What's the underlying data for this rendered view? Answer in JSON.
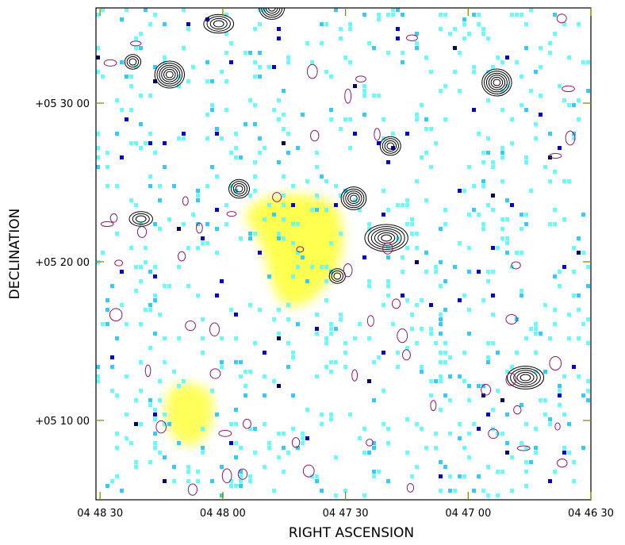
{
  "chart_data": {
    "type": "heatmap",
    "xlabel": "RIGHT ASCENSION",
    "ylabel": "DECLINATION",
    "x_ticks": [
      "04 48 30",
      "04 48 00",
      "04 47 30",
      "04 47 00",
      "04 46 30"
    ],
    "y_ticks": [
      "+05 30 00",
      "+05 20 00",
      "+05 10 00"
    ],
    "x_tick_seconds": [
      17310,
      17280,
      17250,
      17220,
      17190
    ],
    "y_tick_arcmin": [
      330,
      320,
      310
    ],
    "xlim_seconds": [
      17311,
      17190
    ],
    "ylim_arcmin": [
      305,
      336
    ],
    "layers": {
      "radio_diffuse_color": "#ffff33",
      "pixel_colors": [
        "#66ffff",
        "#33ccff",
        "#0000cc",
        "#000066"
      ],
      "contour_colors": {
        "positive": "#000000",
        "negative": "#8b1a6b"
      }
    },
    "diffuse_regions": [
      {
        "name": "halo",
        "ra_seconds": 17261,
        "dec_arcmin": 321.0
      },
      {
        "name": "relic",
        "ra_seconds": 17288,
        "dec_arcmin": 310.5
      }
    ],
    "sources": [
      {
        "ra_seconds": 17302,
        "dec_arcmin": 332.6
      },
      {
        "ra_seconds": 17281,
        "dec_arcmin": 335.0
      },
      {
        "ra_seconds": 17268,
        "dec_arcmin": 336.0
      },
      {
        "ra_seconds": 17293,
        "dec_arcmin": 331.8
      },
      {
        "ra_seconds": 17300,
        "dec_arcmin": 322.7
      },
      {
        "ra_seconds": 17276,
        "dec_arcmin": 324.6
      },
      {
        "ra_seconds": 17248,
        "dec_arcmin": 324.0
      },
      {
        "ra_seconds": 17240,
        "dec_arcmin": 321.5
      },
      {
        "ra_seconds": 17252,
        "dec_arcmin": 319.1
      },
      {
        "ra_seconds": 17239,
        "dec_arcmin": 327.3
      },
      {
        "ra_seconds": 17206,
        "dec_arcmin": 312.7
      },
      {
        "ra_seconds": 17213,
        "dec_arcmin": 331.3
      }
    ]
  }
}
